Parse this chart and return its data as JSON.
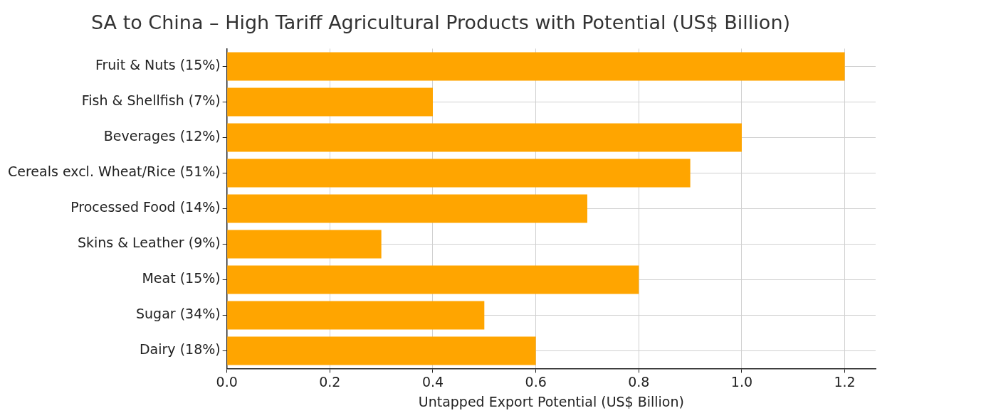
{
  "chart_data": {
    "type": "bar",
    "orientation": "horizontal",
    "title": "SA to China – High Tariff Agricultural Products with Potential (US$ Billion)",
    "xlabel": "Untapped Export Potential (US$ Billion)",
    "categories": [
      "Fruit & Nuts (15%)",
      "Fish & Shellfish (7%)",
      "Beverages (12%)",
      "Cereals excl. Wheat/Rice (51%)",
      "Processed Food (14%)",
      "Skins & Leather (9%)",
      "Meat (15%)",
      "Sugar (34%)",
      "Dairy (18%)"
    ],
    "values": [
      1.2,
      0.4,
      1.0,
      0.9,
      0.7,
      0.3,
      0.8,
      0.5,
      0.6
    ],
    "color": "#ffa500",
    "xlim": [
      0,
      1.26
    ],
    "xticks": [
      {
        "value": 0,
        "label": "0.0"
      },
      {
        "value": 0.2,
        "label": "0.2"
      },
      {
        "value": 0.4,
        "label": "0.4"
      },
      {
        "value": 0.6,
        "label": "0.6"
      },
      {
        "value": 0.8,
        "label": "0.8"
      },
      {
        "value": 1,
        "label": "1.0"
      },
      {
        "value": 1.2,
        "label": "1.2"
      }
    ],
    "grid": true,
    "legend": false
  }
}
